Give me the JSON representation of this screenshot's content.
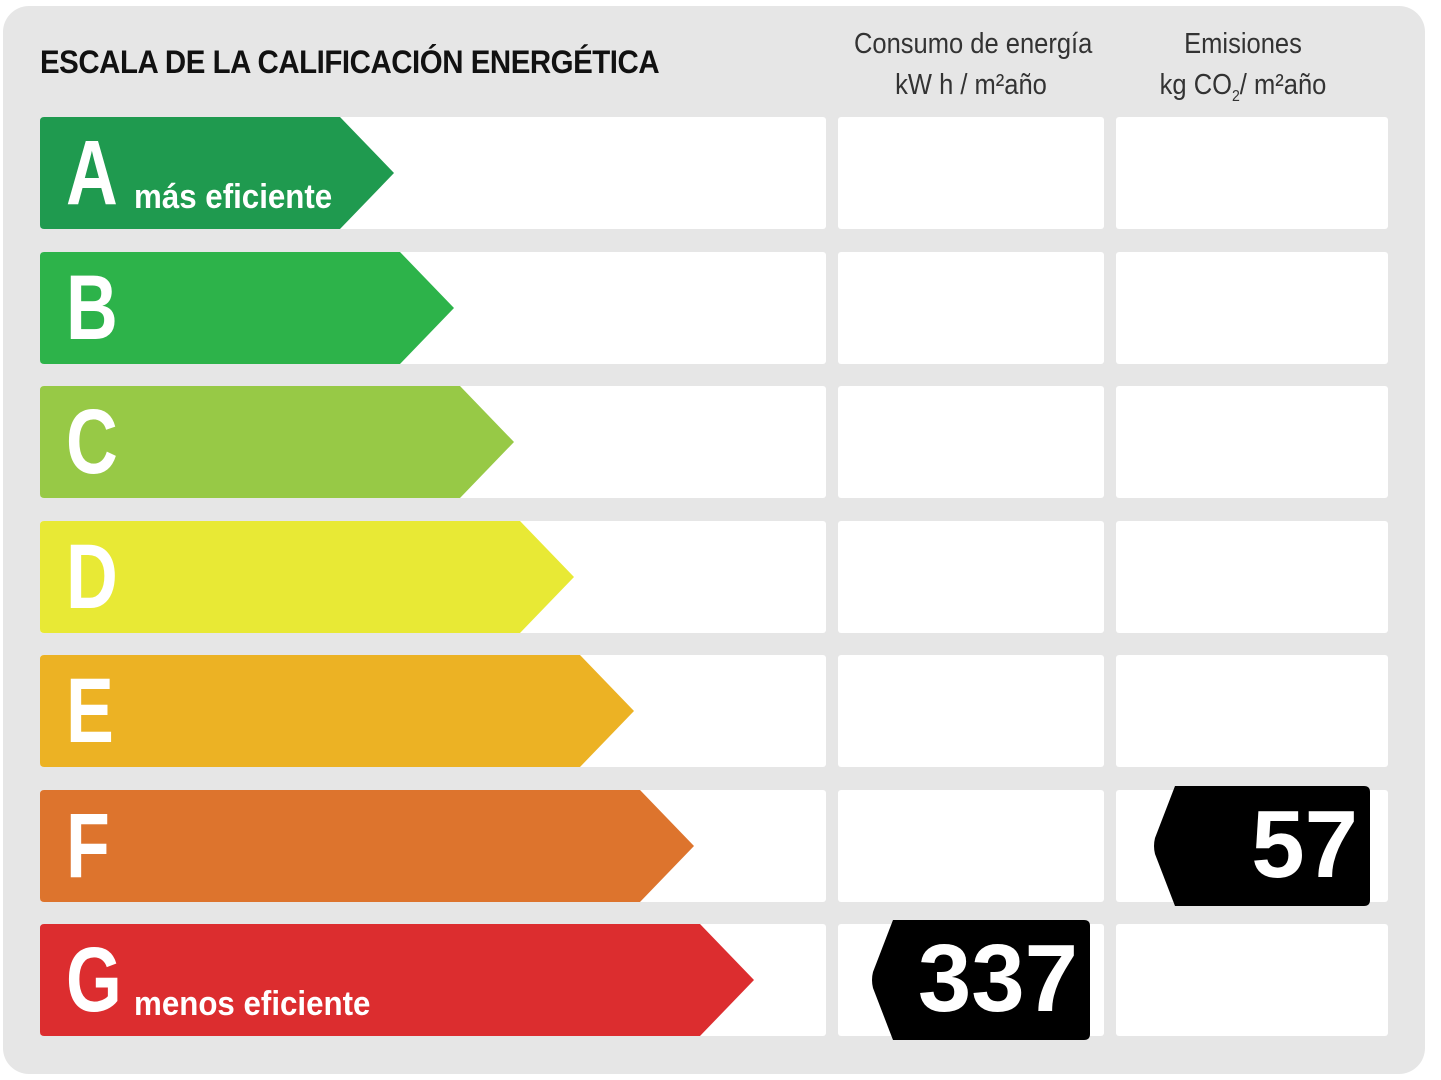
{
  "title": "ESCALA DE LA CALIFICACIÓN ENERGÉTICA",
  "columns": {
    "consumo": {
      "line1": "Consumo de energía",
      "line2": "kW h / m²año"
    },
    "emisiones": {
      "line1": "Emisiones",
      "line2_pre": "kg CO",
      "line2_sub": "2",
      "line2_post": "/ m²año"
    }
  },
  "classes": [
    {
      "letter": "A",
      "label": "más eficiente",
      "color": "#1f9a4f"
    },
    {
      "letter": "B",
      "label": "",
      "color": "#2db34a"
    },
    {
      "letter": "C",
      "label": "",
      "color": "#97c946"
    },
    {
      "letter": "D",
      "label": "",
      "color": "#e8e935"
    },
    {
      "letter": "E",
      "label": "",
      "color": "#ecb224"
    },
    {
      "letter": "F",
      "label": "",
      "color": "#dd742d"
    },
    {
      "letter": "G",
      "label": "menos eficiente",
      "color": "#dc2d2f"
    }
  ],
  "ratings": {
    "consumo": {
      "class": "G",
      "value": "337"
    },
    "emisiones": {
      "class": "F",
      "value": "57"
    }
  }
}
